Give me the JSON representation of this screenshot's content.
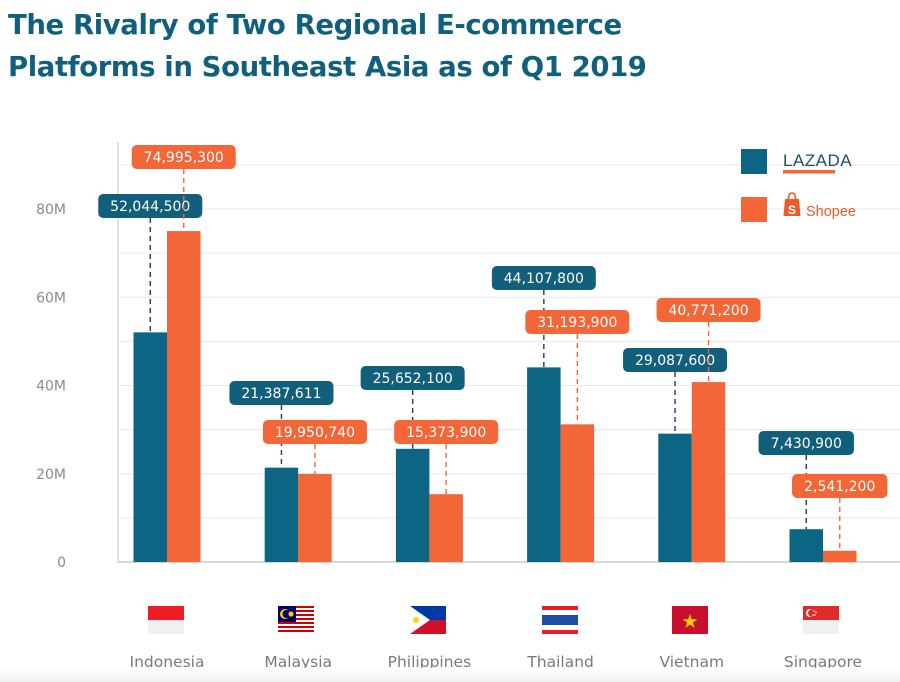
{
  "title": {
    "line1": "The Rivalry of Two Regional E-commerce",
    "line2": "Platforms in Southeast Asia as of Q1 2019"
  },
  "colors": {
    "lazada": "#0c6683",
    "lazada_label": "#125f7c",
    "shopee": "#f26638",
    "shopee_label": "#f26638",
    "title": "#0f5f7d",
    "grid": "#e8e8e8",
    "axis": "#cccccc"
  },
  "legend": {
    "position": "top-right",
    "items": [
      {
        "key": "lazada",
        "label": "LAZADA",
        "icon": "lazada-logo"
      },
      {
        "key": "shopee",
        "label": "Shopee",
        "icon": "shopee-bag-logo"
      }
    ]
  },
  "chart_data": {
    "type": "bar",
    "title": "The Rivalry of Two Regional E-commerce Platforms in Southeast Asia as of Q1 2019",
    "xlabel": "",
    "ylabel": "",
    "categories": [
      "Indonesia",
      "Malaysia",
      "Philippines",
      "Thailand",
      "Vietnam",
      "Singapore"
    ],
    "category_icons": [
      "flag-indonesia",
      "flag-malaysia",
      "flag-philippines",
      "flag-thailand",
      "flag-vietnam",
      "flag-singapore"
    ],
    "series": [
      {
        "name": "Lazada",
        "values": [
          52044500,
          21387611,
          25652100,
          44107800,
          29087600,
          7430900
        ],
        "labels": [
          "52,044,500",
          "21,387,611",
          "25,652,100",
          "44,107,800",
          "29,087,600",
          "7,430,900"
        ]
      },
      {
        "name": "Shopee",
        "values": [
          74995300,
          19950740,
          15373900,
          31193900,
          40771200,
          2541200
        ],
        "labels": [
          "74,995,300",
          "19,950,740",
          "15,373,900",
          "31,193,900",
          "40,771,200",
          "2,541,200"
        ]
      }
    ],
    "ylim": [
      0,
      90000000
    ],
    "yticks": [
      0,
      20000000,
      40000000,
      60000000,
      80000000
    ],
    "ytick_labels": [
      "0",
      "20M",
      "40M",
      "60M",
      "80M"
    ],
    "grid": true,
    "grid_step": 10000000,
    "legend": "top-right"
  }
}
